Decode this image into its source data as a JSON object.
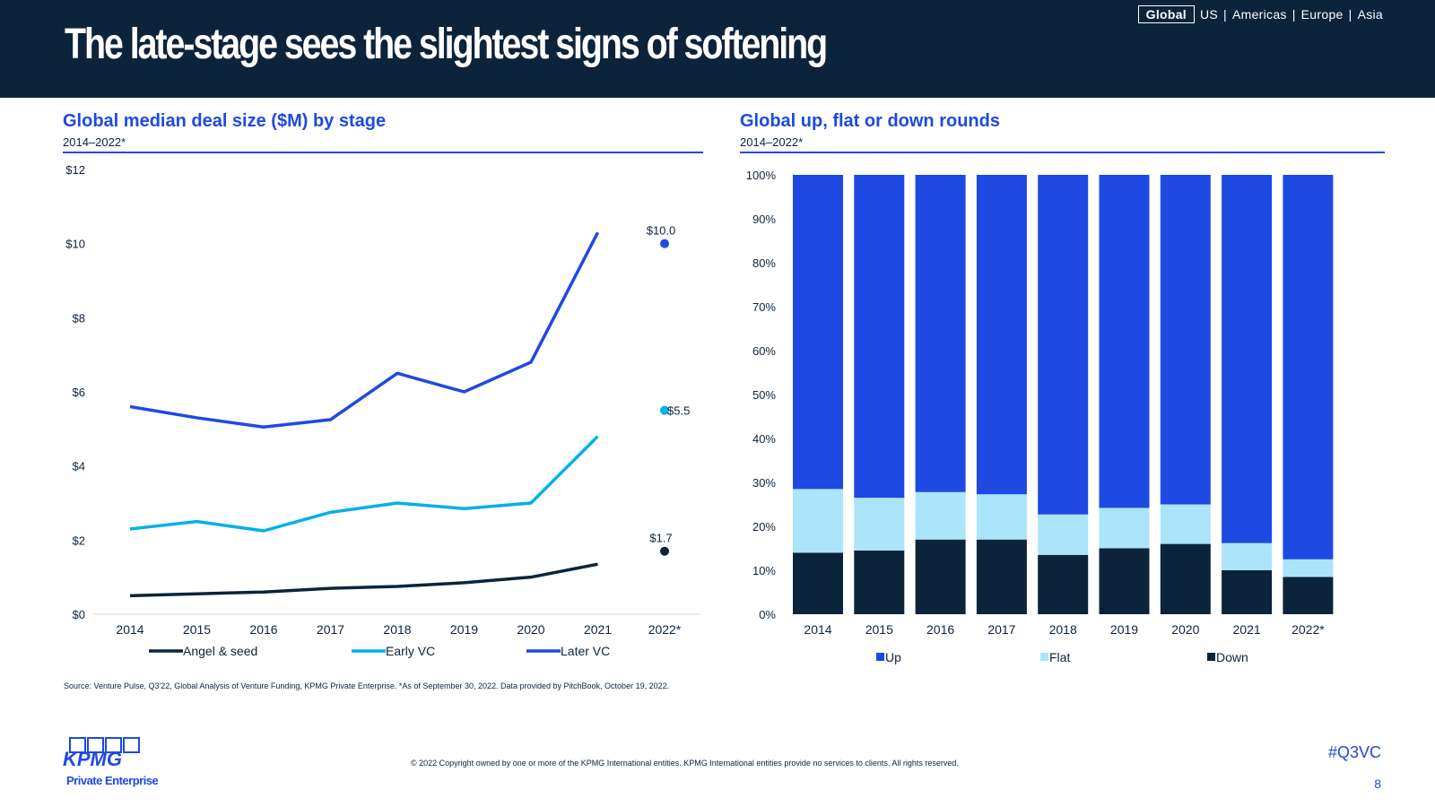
{
  "header": {
    "title": "The late-stage sees the slightest signs of softening",
    "regions": [
      {
        "label": "Global",
        "active": true
      },
      {
        "label": "US"
      },
      {
        "label": "Americas"
      },
      {
        "label": "Europe"
      },
      {
        "label": "Asia"
      }
    ]
  },
  "left_panel": {
    "title": "Global median deal size ($M) by stage",
    "subtitle": "2014–2022*"
  },
  "right_panel": {
    "title": "Global up, flat or down rounds",
    "subtitle": "2014–2022*"
  },
  "colors": {
    "navy": "#0c233c",
    "blue": "#1e49e2",
    "cyan": "#00b0ea",
    "light_cyan": "#abe4fb",
    "up_blue": "#1e49e2"
  },
  "chart_data": [
    {
      "type": "line",
      "title": "Global median deal size ($M) by stage",
      "categories": [
        "2014",
        "2015",
        "2016",
        "2017",
        "2018",
        "2019",
        "2020",
        "2021",
        "2022*"
      ],
      "y_tick_labels": [
        "$0",
        "$2",
        "$4",
        "$6",
        "$8",
        "$10",
        "$12"
      ],
      "ylim": [
        0,
        12
      ],
      "series": [
        {
          "name": "Angel & seed",
          "color": "#0c233c",
          "values": [
            0.5,
            0.55,
            0.6,
            0.7,
            0.75,
            0.85,
            1.0,
            1.35,
            1.7
          ]
        },
        {
          "name": "Early VC",
          "color": "#00b0ea",
          "values": [
            2.3,
            2.5,
            2.25,
            2.75,
            3.0,
            2.85,
            3.0,
            4.8,
            5.5
          ]
        },
        {
          "name": "Later VC",
          "color": "#1e49e2",
          "values": [
            5.6,
            5.3,
            5.05,
            5.25,
            6.5,
            6.0,
            6.8,
            10.3,
            10.0
          ]
        }
      ],
      "data_labels": [
        {
          "series": "Angel & seed",
          "label": "$1.7"
        },
        {
          "series": "Early VC",
          "label": "$5.5"
        },
        {
          "series": "Later VC",
          "label": "$10.0"
        }
      ],
      "legend_position": "bottom",
      "grid": false
    },
    {
      "type": "bar",
      "stacked": true,
      "title": "Global up, flat or down rounds",
      "categories": [
        "2014",
        "2015",
        "2016",
        "2017",
        "2018",
        "2019",
        "2020",
        "2021",
        "2022*"
      ],
      "y_tick_labels": [
        "0%",
        "10%",
        "20%",
        "30%",
        "40%",
        "50%",
        "60%",
        "70%",
        "80%",
        "90%",
        "100%"
      ],
      "ylim": [
        0,
        100
      ],
      "series": [
        {
          "name": "Down",
          "color": "#0c233c",
          "values": [
            14,
            14.5,
            17,
            17,
            13.5,
            15,
            16,
            10,
            8.5
          ]
        },
        {
          "name": "Flat",
          "color": "#abe4fb",
          "values": [
            14.5,
            12,
            10.8,
            10.3,
            9.2,
            9.2,
            9,
            6.2,
            4
          ]
        },
        {
          "name": "Up",
          "color": "#1e49e2",
          "values": [
            71.5,
            73.5,
            72.2,
            72.7,
            77.3,
            75.8,
            75,
            83.8,
            87.5
          ]
        }
      ],
      "legend_order": [
        "Up",
        "Flat",
        "Down"
      ],
      "legend_position": "bottom",
      "grid": false
    }
  ],
  "footer": {
    "source": "Source: Venture Pulse, Q3'22, Global Analysis of Venture Funding, KPMG Private Enterprise. *As of September 30, 2022. Data provided by PitchBook, October 19, 2022.",
    "copyright": "© 2022 Copyright owned by one or more of the KPMG International entities. KPMG International entities provide no services to clients. All rights reserved.",
    "hashtag": "#Q3VC",
    "page_number": "8",
    "logo_text": "KPMG",
    "logo_subtext": "Private Enterprise"
  }
}
